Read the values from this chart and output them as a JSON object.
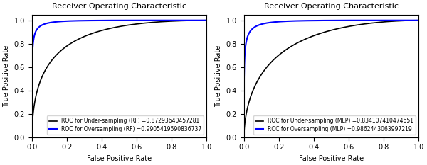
{
  "title": "Receiver Operating Characteristic",
  "xlabel": "False Positive Rate",
  "ylabel": "True Positive Rate",
  "legend_under_rf": "ROC for Under-sampling (RF) =0.87293640457281",
  "legend_over_rf": "ROC for Oversampling (RF) =0.9905419590836737",
  "legend_under_mlp": "ROC for Under-sampling (MLP) =0.834107410474651",
  "legend_over_mlp": "ROC for Oversampling (MLP) =0.9862443063997219",
  "auc_under_rf": 0.87293640457281,
  "auc_over_rf": 0.9905419590836737,
  "auc_under_mlp": 0.834107410474651,
  "auc_over_mlp": 0.9862443063997219,
  "color_under": "black",
  "color_over": "blue",
  "figsize": [
    6.0,
    2.33
  ],
  "dpi": 100,
  "tick_fontsize": 7,
  "label_fontsize": 7,
  "title_fontsize": 8,
  "legend_fontsize": 5.5
}
